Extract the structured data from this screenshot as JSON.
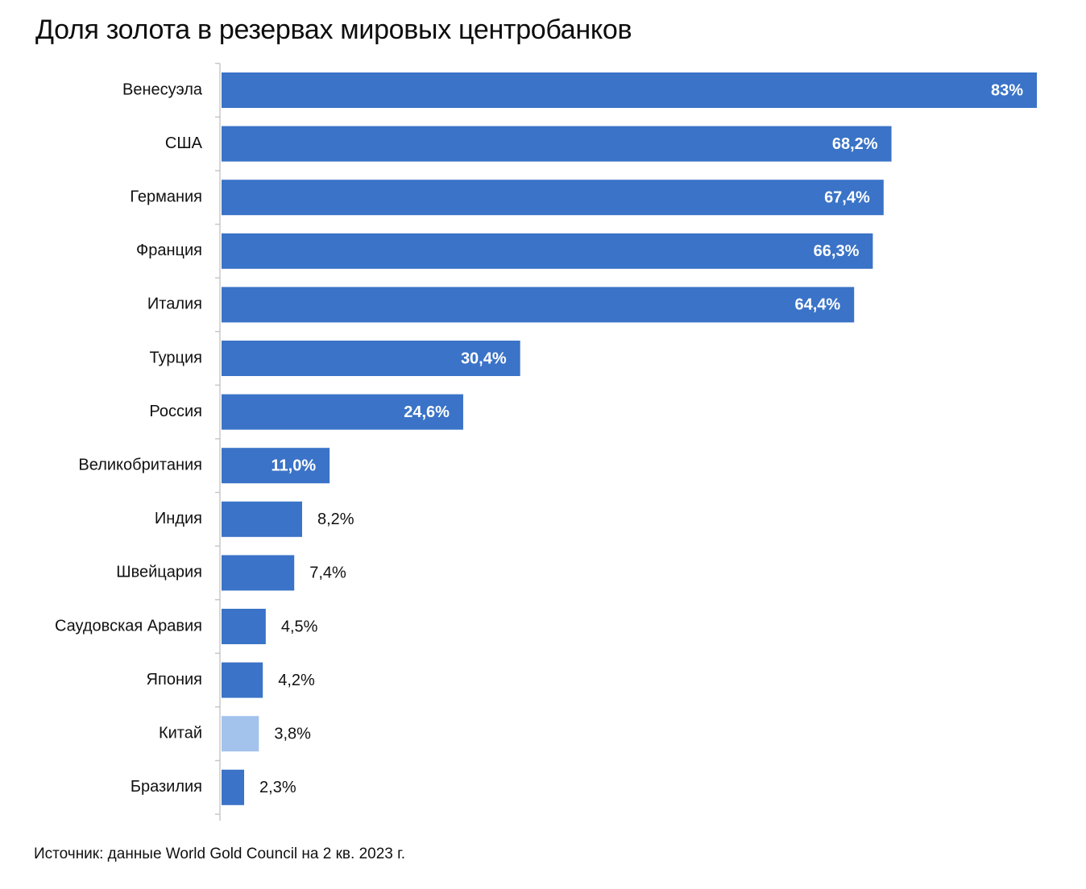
{
  "chart_data": {
    "type": "bar",
    "orientation": "horizontal",
    "title": "Доля золота в резервах мировых центробанков",
    "categories": [
      "Венесуэла",
      "США",
      "Германия",
      "Франция",
      "Италия",
      "Турция",
      "Россия",
      "Великобритания",
      "Индия",
      "Швейцария",
      "Саудовская Аравия",
      "Япония",
      "Китай",
      "Бразилия"
    ],
    "values": [
      83,
      68.2,
      67.4,
      66.3,
      64.4,
      30.4,
      24.6,
      11.0,
      8.2,
      7.4,
      4.5,
      4.2,
      3.8,
      2.3
    ],
    "value_labels": [
      "83%",
      "68,2%",
      "67,4%",
      "66,3%",
      "64,4%",
      "30,4%",
      "24,6%",
      "11,0%",
      "8,2%",
      "7,4%",
      "4,5%",
      "4,2%",
      "3,8%",
      "2,3%"
    ],
    "highlight": [
      false,
      false,
      false,
      false,
      false,
      false,
      false,
      false,
      false,
      false,
      false,
      false,
      true,
      false
    ],
    "unit": "%",
    "xlabel": "",
    "ylabel": "",
    "xlim": [
      0,
      83
    ],
    "grid": false,
    "legend": "none",
    "colors": {
      "bar": "#3a73c7",
      "highlight_bar": "#a3c3ec",
      "axis": "#c8c8c8",
      "label_inside": "#ffffff",
      "label_outside": "#111111"
    }
  },
  "footer": {
    "source": "Источник: данные World Gold Council на 2 кв. 2023 г."
  }
}
